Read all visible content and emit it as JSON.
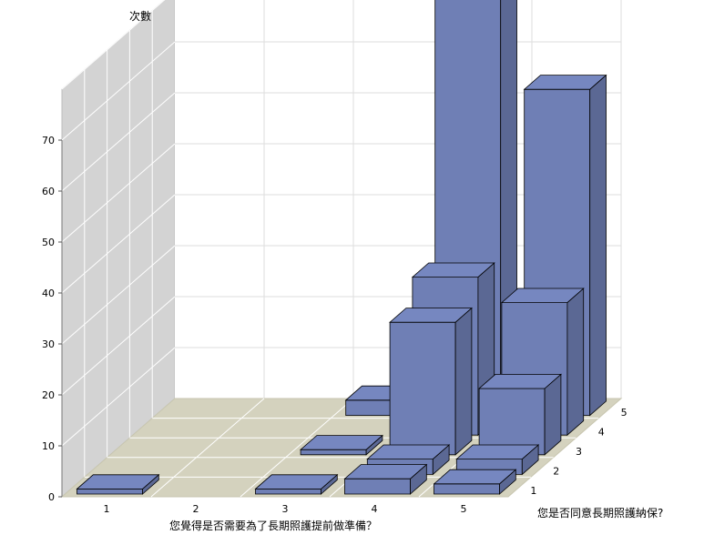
{
  "chart_data": {
    "type": "bar3d",
    "ylabel": "次數",
    "xlabel": "您覺得是否需要為了長期照護提前做準備？",
    "zlabel": "您是否同意長期照護納保?",
    "x_categories": [
      "1",
      "2",
      "3",
      "4",
      "5"
    ],
    "z_categories": [
      "1",
      "2",
      "3",
      "4",
      "5"
    ],
    "yticks": [
      "0",
      "10",
      "20",
      "30",
      "40",
      "50",
      "60",
      "70"
    ],
    "ylim": [
      0,
      80
    ],
    "grid": true,
    "bar_color": "#6f7fb5",
    "floor_color": "#d4d2be",
    "wall_color": "#d3d3d3",
    "bars": [
      {
        "x": "1",
        "z": "1",
        "value": 1
      },
      {
        "x": "3",
        "z": "5",
        "value": 3
      },
      {
        "x": "3",
        "z": "3",
        "value": 1
      },
      {
        "x": "3",
        "z": "1",
        "value": 1
      },
      {
        "x": "4",
        "z": "5",
        "value": 84
      },
      {
        "x": "4",
        "z": "4",
        "value": 31
      },
      {
        "x": "4",
        "z": "3",
        "value": 26
      },
      {
        "x": "4",
        "z": "2",
        "value": 3
      },
      {
        "x": "4",
        "z": "1",
        "value": 3
      },
      {
        "x": "5",
        "z": "5",
        "value": 64
      },
      {
        "x": "5",
        "z": "4",
        "value": 26
      },
      {
        "x": "5",
        "z": "3",
        "value": 13
      },
      {
        "x": "5",
        "z": "2",
        "value": 3
      },
      {
        "x": "5",
        "z": "1",
        "value": 2
      }
    ]
  }
}
